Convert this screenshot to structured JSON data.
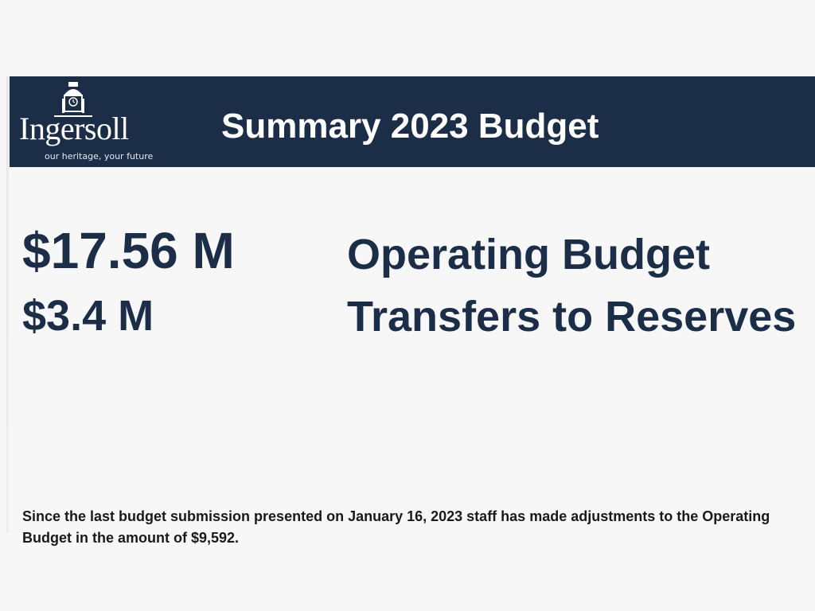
{
  "header": {
    "logo": {
      "name": "Ingersoll",
      "tagline": "our heritage, your future",
      "icon": "clock-tower-icon"
    },
    "title": "Summary 2023 Budget"
  },
  "budget_items": [
    {
      "amount": "$17.56 M",
      "label": "Operating Budget"
    },
    {
      "amount": "$3.4 M",
      "label": "Transfers to Reserves"
    }
  ],
  "note": "Since the last budget submission presented on January 16, 2023 staff has made adjustments to the Operating Budget in the amount of $9,592.",
  "colors": {
    "header_background": "#1c2d48",
    "accent_text": "#1c2d48",
    "page_background": "#f7f7f8"
  }
}
